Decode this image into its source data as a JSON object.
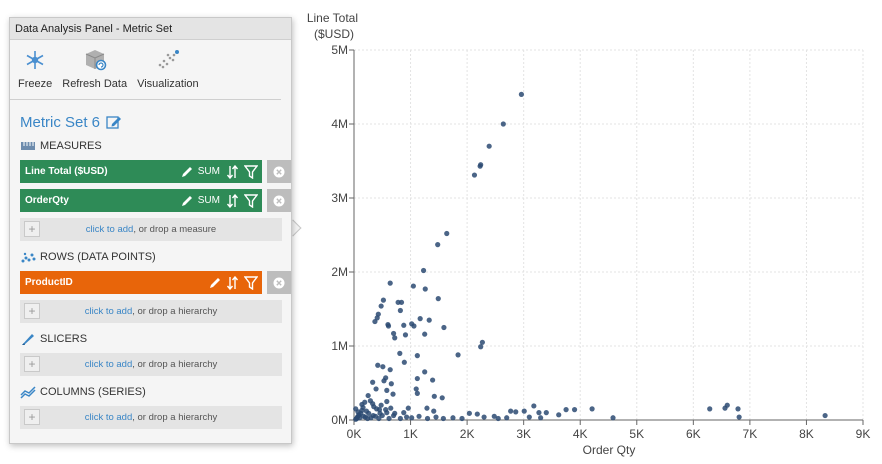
{
  "panel": {
    "title": "Data Analysis Panel - Metric Set",
    "toolbar": [
      {
        "label": "Freeze",
        "icon": "freeze-icon"
      },
      {
        "label": "Refresh Data",
        "icon": "refresh-data-icon"
      },
      {
        "label": "Visualization",
        "icon": "visualization-icon"
      }
    ],
    "metric_set_name": "Metric Set 6",
    "measures": {
      "heading": "MEASURES",
      "items": [
        {
          "label": "Line Total ($USD)",
          "agg": "SUM"
        },
        {
          "label": "OrderQty",
          "agg": "SUM"
        }
      ],
      "drop_link": "click to add",
      "drop_text": ", or drop a measure"
    },
    "rows": {
      "heading": "ROWS (DATA POINTS)",
      "items": [
        {
          "label": "ProductID"
        }
      ],
      "drop_link": "click to add",
      "drop_text": ", or drop a hierarchy"
    },
    "slicers": {
      "heading": "SLICERS",
      "drop_link": "click to add",
      "drop_text": ", or drop a hierarchy"
    },
    "columns": {
      "heading": "COLUMNS (SERIES)",
      "drop_link": "click to add",
      "drop_text": ", or drop a hierarchy"
    },
    "colors": {
      "measure": "#2e8b57",
      "row": "#e8650a",
      "link": "#3a86c6"
    }
  },
  "chart_data": {
    "type": "scatter",
    "ylabel_line1": "Line Total",
    "ylabel_line2": "($USD)",
    "xlabel": "Order Qty",
    "xlim": [
      0,
      9000
    ],
    "ylim": [
      0,
      5000000
    ],
    "xticks": [
      0,
      1000,
      2000,
      3000,
      4000,
      5000,
      6000,
      7000,
      8000,
      9000
    ],
    "xtick_labels": [
      "0K",
      "1K",
      "2K",
      "3K",
      "4K",
      "5K",
      "6K",
      "7K",
      "8K",
      "9K"
    ],
    "yticks": [
      0,
      1000000,
      2000000,
      3000000,
      4000000,
      5000000
    ],
    "ytick_labels": [
      "0M",
      "1M",
      "2M",
      "3M",
      "4M",
      "5M"
    ],
    "grid": true,
    "point_color": "#2c4a72",
    "points": [
      [
        2960,
        4400000
      ],
      [
        2640,
        4000000
      ],
      [
        2390,
        3700000
      ],
      [
        2240,
        3450000
      ],
      [
        2230,
        3430000
      ],
      [
        2130,
        3310000
      ],
      [
        1640,
        2520000
      ],
      [
        1480,
        2370000
      ],
      [
        1230,
        2020000
      ],
      [
        1050,
        1810000
      ],
      [
        1260,
        1770000
      ],
      [
        1490,
        1640000
      ],
      [
        640,
        1850000
      ],
      [
        520,
        1620000
      ],
      [
        480,
        1540000
      ],
      [
        430,
        1430000
      ],
      [
        410,
        1380000
      ],
      [
        370,
        1330000
      ],
      [
        600,
        1290000
      ],
      [
        610,
        1270000
      ],
      [
        700,
        1170000
      ],
      [
        720,
        1110000
      ],
      [
        780,
        1590000
      ],
      [
        840,
        1590000
      ],
      [
        880,
        1280000
      ],
      [
        910,
        1150000
      ],
      [
        820,
        1480000
      ],
      [
        1020,
        1300000
      ],
      [
        1060,
        1270000
      ],
      [
        1170,
        1370000
      ],
      [
        1330,
        1350000
      ],
      [
        1590,
        1250000
      ],
      [
        1840,
        880000
      ],
      [
        2270,
        1050000
      ],
      [
        2240,
        990000
      ],
      [
        1250,
        1160000
      ],
      [
        810,
        900000
      ],
      [
        890,
        780000
      ],
      [
        1120,
        870000
      ],
      [
        1250,
        650000
      ],
      [
        1390,
        540000
      ],
      [
        1120,
        560000
      ],
      [
        420,
        740000
      ],
      [
        510,
        720000
      ],
      [
        640,
        680000
      ],
      [
        660,
        490000
      ],
      [
        580,
        400000
      ],
      [
        690,
        350000
      ],
      [
        560,
        570000
      ],
      [
        530,
        530000
      ],
      [
        330,
        510000
      ],
      [
        390,
        420000
      ],
      [
        1100,
        420000
      ],
      [
        1120,
        360000
      ],
      [
        1420,
        320000
      ],
      [
        1560,
        300000
      ],
      [
        960,
        160000
      ],
      [
        880,
        100000
      ],
      [
        1290,
        160000
      ],
      [
        1410,
        120000
      ],
      [
        250,
        330000
      ],
      [
        290,
        260000
      ],
      [
        330,
        220000
      ],
      [
        350,
        180000
      ],
      [
        400,
        150000
      ],
      [
        450,
        140000
      ],
      [
        190,
        240000
      ],
      [
        140,
        210000
      ],
      [
        160,
        170000
      ],
      [
        220,
        120000
      ],
      [
        120,
        90000
      ],
      [
        80,
        60000
      ],
      [
        60,
        40000
      ],
      [
        50,
        20000
      ],
      [
        30,
        10000
      ],
      [
        100,
        30000
      ],
      [
        200,
        40000
      ],
      [
        300,
        30000
      ],
      [
        380,
        50000
      ],
      [
        500,
        60000
      ],
      [
        620,
        20000
      ],
      [
        700,
        60000
      ],
      [
        820,
        20000
      ],
      [
        930,
        40000
      ],
      [
        1020,
        30000
      ],
      [
        1150,
        50000
      ],
      [
        1300,
        20000
      ],
      [
        1450,
        40000
      ],
      [
        1580,
        20000
      ],
      [
        1750,
        30000
      ],
      [
        1910,
        20000
      ],
      [
        2040,
        90000
      ],
      [
        2180,
        80000
      ],
      [
        2300,
        40000
      ],
      [
        2480,
        50000
      ],
      [
        2550,
        20000
      ],
      [
        2770,
        120000
      ],
      [
        2860,
        110000
      ],
      [
        3010,
        120000
      ],
      [
        3180,
        190000
      ],
      [
        3270,
        100000
      ],
      [
        3400,
        100000
      ],
      [
        3620,
        70000
      ],
      [
        3750,
        140000
      ],
      [
        3900,
        140000
      ],
      [
        4210,
        150000
      ],
      [
        4580,
        30000
      ],
      [
        6290,
        150000
      ],
      [
        6560,
        160000
      ],
      [
        6600,
        200000
      ],
      [
        6790,
        150000
      ],
      [
        6810,
        40000
      ],
      [
        8330,
        60000
      ],
      [
        3100,
        40000
      ],
      [
        2700,
        30000
      ],
      [
        3300,
        30000
      ],
      [
        140,
        130000
      ],
      [
        260,
        90000
      ],
      [
        340,
        60000
      ],
      [
        460,
        90000
      ],
      [
        580,
        100000
      ],
      [
        720,
        90000
      ],
      [
        30,
        150000
      ],
      [
        70,
        110000
      ],
      [
        90,
        70000
      ],
      [
        170,
        50000
      ],
      [
        240,
        20000
      ],
      [
        440,
        20000
      ],
      [
        560,
        140000
      ],
      [
        650,
        160000
      ],
      [
        480,
        200000
      ],
      [
        580,
        250000
      ]
    ]
  }
}
